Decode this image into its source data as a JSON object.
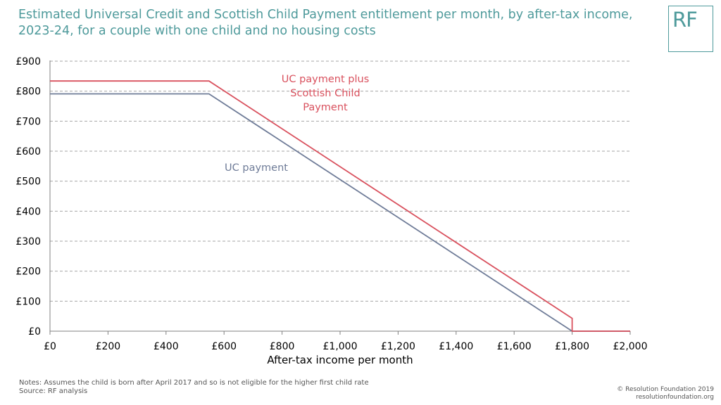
{
  "title": "Estimated Universal Credit and Scottish Child Payment entitlement per month, by after-tax income, 2023-24, for a couple with one child and no housing costs",
  "logo_text": "RF",
  "notes": {
    "line1": "Notes: Assumes the child is born after April 2017 and so is not eligible for the higher first child rate",
    "line2": "Source: RF analysis"
  },
  "copyright": {
    "line1": "© Resolution Foundation 2019",
    "line2": "resolutionfoundation.org"
  },
  "colors": {
    "title": "#4e9a9b",
    "uc": "#6f7c98",
    "scp": "#d9515e",
    "grid": "#a6a6a6"
  },
  "chart_data": {
    "type": "line",
    "title": "",
    "xlabel": "After-tax income per month",
    "ylabel": "",
    "xlim": [
      0,
      2000
    ],
    "ylim": [
      0,
      900
    ],
    "grid": true,
    "x_ticks": [
      0,
      200,
      400,
      600,
      800,
      1000,
      1200,
      1400,
      1600,
      1800,
      2000
    ],
    "x_tick_labels": [
      "£0",
      "£200",
      "£400",
      "£600",
      "£800",
      "£1,000",
      "£1,200",
      "£1,400",
      "£1,600",
      "£1,800",
      "£2,000"
    ],
    "y_ticks": [
      0,
      100,
      200,
      300,
      400,
      500,
      600,
      700,
      800,
      900
    ],
    "y_tick_labels": [
      "£0",
      "£100",
      "£200",
      "£300",
      "£400",
      "£500",
      "£600",
      "£700",
      "£800",
      "£900"
    ],
    "series": [
      {
        "name": "UC payment",
        "color": "#6f7c98",
        "points": [
          [
            0,
            791
          ],
          [
            548,
            791
          ],
          [
            1800,
            0
          ],
          [
            2000,
            0
          ]
        ]
      },
      {
        "name": "UC payment plus Scottish Child Payment",
        "color": "#d9515e",
        "points": [
          [
            0,
            834
          ],
          [
            548,
            834
          ],
          [
            1800,
            43
          ],
          [
            1800,
            0
          ],
          [
            2000,
            0
          ]
        ]
      }
    ],
    "annotations": [
      {
        "series": "UC payment plus Scottish Child Payment",
        "lines": [
          "UC payment plus",
          "Scottish Child",
          "Payment"
        ]
      },
      {
        "series": "UC payment",
        "lines": [
          "UC payment"
        ]
      }
    ]
  }
}
